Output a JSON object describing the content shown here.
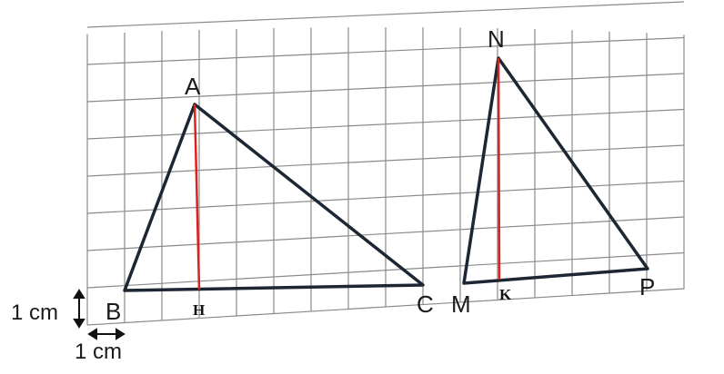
{
  "points": {
    "A": "A",
    "B": "B",
    "C": "C",
    "H": "H",
    "M": "M",
    "N": "N",
    "P": "P",
    "K": "K"
  },
  "scale": {
    "vertical": "1 cm",
    "horizontal": "1 cm"
  },
  "colors": {
    "triangle": "#1c2733",
    "altitude": "#e0201c",
    "grid": "#8a8a8a"
  }
}
